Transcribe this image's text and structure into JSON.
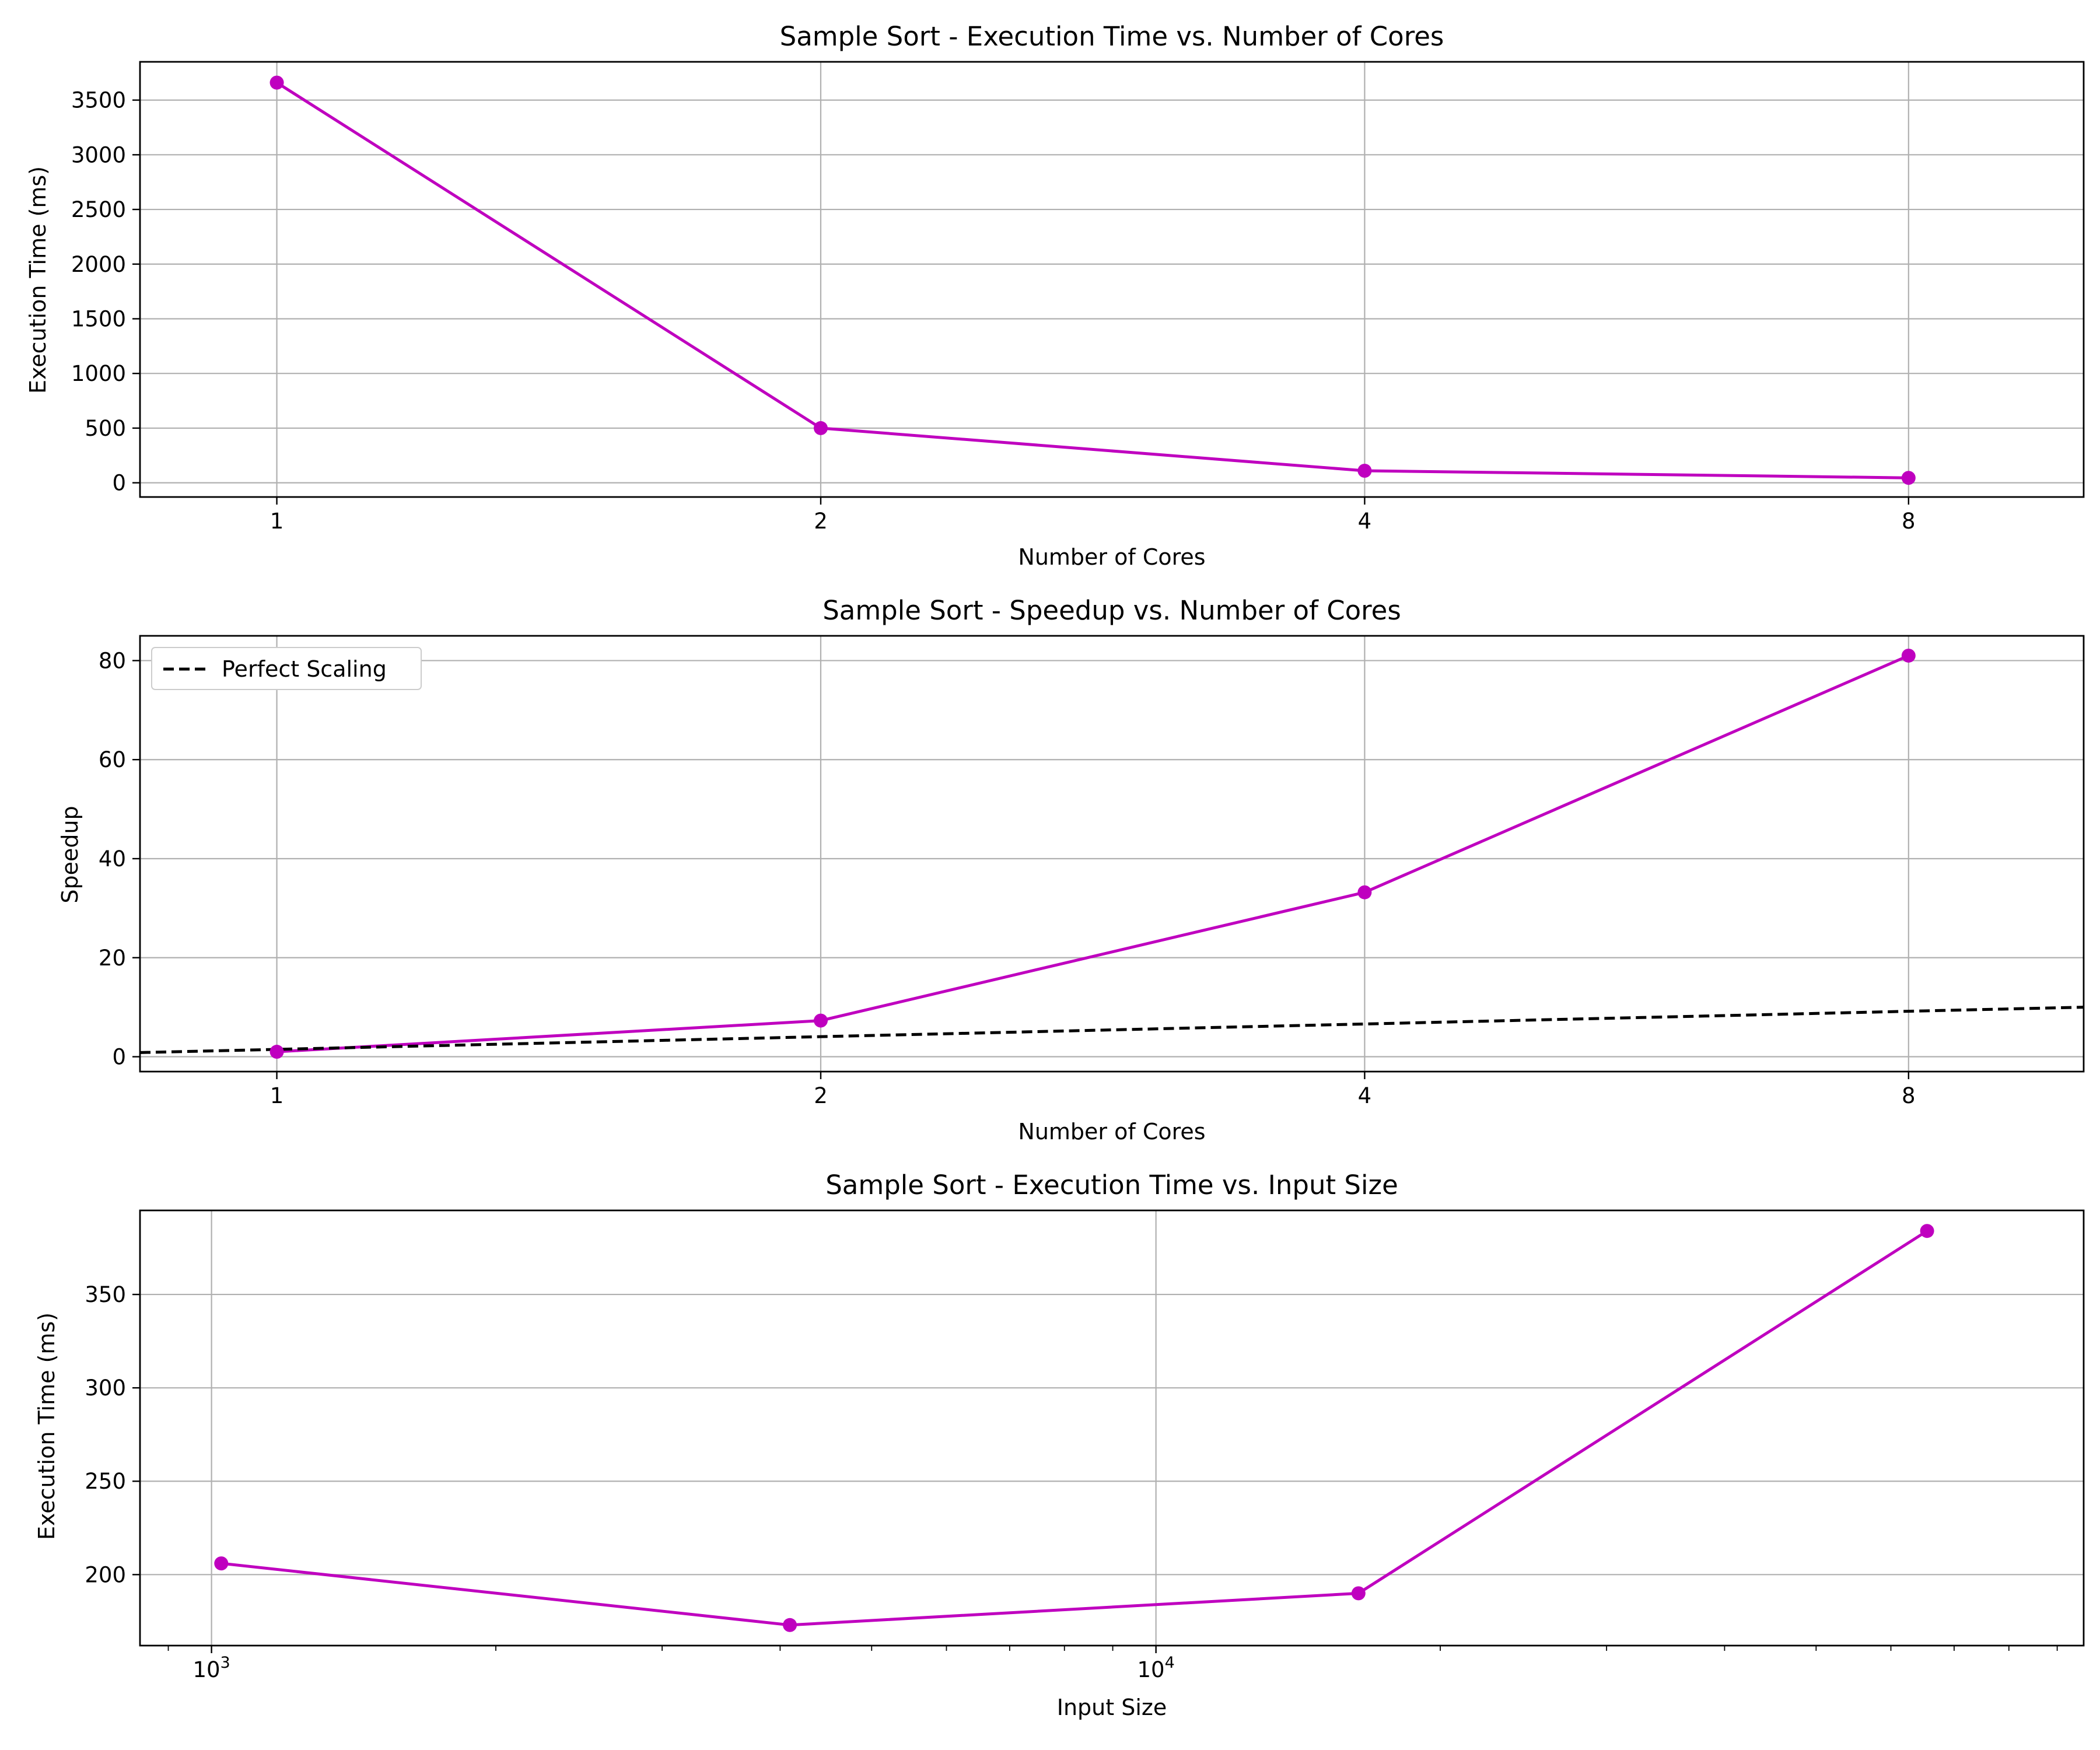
{
  "colors": {
    "series": "#bf00bf",
    "reference": "#000000",
    "grid": "#b0b0b0"
  },
  "chart_data": [
    {
      "type": "line",
      "title": "Sample Sort - Execution Time vs. Number of Cores",
      "xlabel": "Number of Cores",
      "ylabel": "Execution Time (ms)",
      "x_scale": "log2",
      "xlim": [
        0.84,
        10.0
      ],
      "ylim": [
        -130,
        3850
      ],
      "xticks": [
        1,
        2,
        4,
        8
      ],
      "xtick_labels": [
        "1",
        "2",
        "4",
        "8"
      ],
      "yticks": [
        0,
        500,
        1000,
        1500,
        2000,
        2500,
        3000,
        3500
      ],
      "ytick_labels": [
        "0",
        "500",
        "1000",
        "1500",
        "2000",
        "2500",
        "3000",
        "3500"
      ],
      "grid": true,
      "series": [
        {
          "x": [
            1,
            2,
            4,
            8
          ],
          "values": [
            3660,
            500,
            110,
            45
          ],
          "marker": "circle",
          "style": "solid"
        }
      ]
    },
    {
      "type": "line",
      "title": "Sample Sort - Speedup vs. Number of Cores",
      "xlabel": "Number of Cores",
      "ylabel": "Speedup",
      "x_scale": "log2",
      "xlim": [
        0.84,
        10.0
      ],
      "ylim": [
        -3,
        85
      ],
      "xticks": [
        1,
        2,
        4,
        8
      ],
      "xtick_labels": [
        "1",
        "2",
        "4",
        "8"
      ],
      "yticks": [
        0,
        20,
        40,
        60,
        80
      ],
      "ytick_labels": [
        "0",
        "20",
        "40",
        "60",
        "80"
      ],
      "grid": true,
      "legend": "upper-left",
      "series": [
        {
          "x": [
            1,
            2,
            4,
            8
          ],
          "values": [
            1.0,
            7.3,
            33.2,
            81.0
          ],
          "marker": "circle",
          "style": "solid"
        },
        {
          "name": "Perfect Scaling",
          "x": [
            0.84,
            10.0
          ],
          "values": [
            0.84,
            10.0
          ],
          "marker": "none",
          "style": "dashed"
        }
      ]
    },
    {
      "type": "line",
      "title": "Sample Sort - Execution Time vs. Input Size",
      "xlabel": "Input Size",
      "ylabel": "Execution Time (ms)",
      "x_scale": "log10",
      "xlim": [
        840,
        96000
      ],
      "ylim": [
        162,
        395
      ],
      "xticks": [
        1000,
        10000
      ],
      "xtick_labels": [
        "10^3",
        "10^4"
      ],
      "yticks": [
        200,
        250,
        300,
        350
      ],
      "ytick_labels": [
        "200",
        "250",
        "300",
        "350"
      ],
      "grid": true,
      "series": [
        {
          "x": [
            1024,
            4096,
            16384,
            65536
          ],
          "values": [
            206,
            173,
            190,
            384
          ],
          "marker": "circle",
          "style": "solid"
        }
      ]
    }
  ]
}
